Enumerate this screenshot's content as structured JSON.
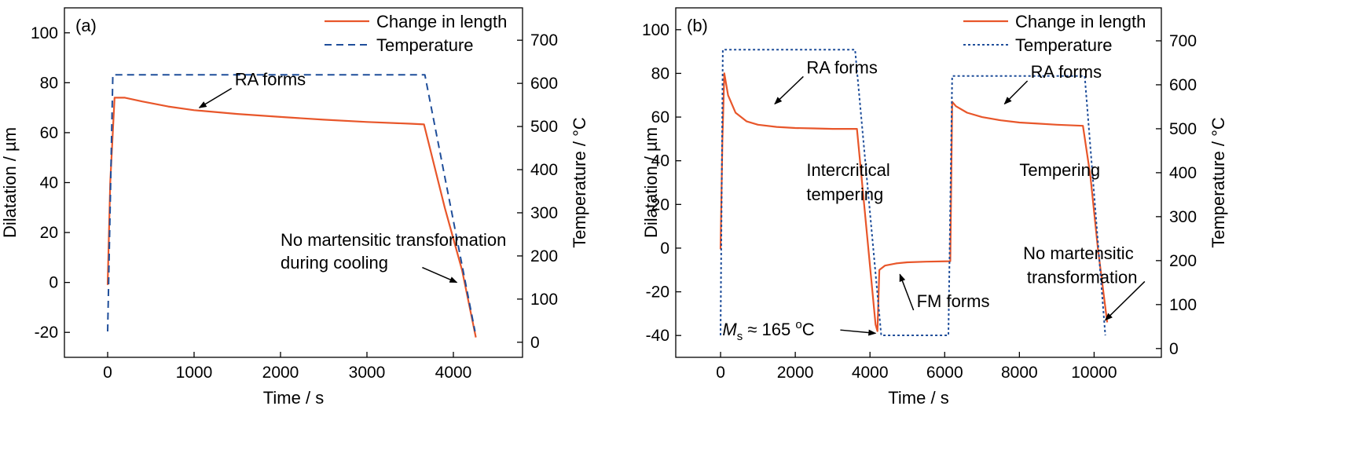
{
  "chart_data": [
    {
      "type": "line",
      "panel_label": "(a)",
      "xlabel": "Time / s",
      "ylabel": "Dilatation / µm",
      "y2label": "Temperature / °C",
      "xlim": [
        -500,
        4800
      ],
      "ylim": [
        -30,
        110
      ],
      "y2lim": [
        -35,
        775
      ],
      "xticks": [
        0,
        1000,
        2000,
        3000,
        4000
      ],
      "yticks": [
        -20,
        0,
        20,
        40,
        60,
        80,
        100
      ],
      "y2ticks": [
        0,
        100,
        200,
        300,
        400,
        500,
        600,
        700
      ],
      "grid": false,
      "legend_position": "top-right",
      "series": [
        {
          "name": "Change in length",
          "axis": "left",
          "style": "solid",
          "color": "#e8562a",
          "x": [
            0,
            30,
            80,
            200,
            400,
            700,
            1000,
            1500,
            2000,
            2500,
            3000,
            3500,
            3660,
            3900,
            4100,
            4260
          ],
          "y": [
            -1,
            40,
            74,
            74,
            72.5,
            70.5,
            69,
            67.5,
            66.3,
            65.2,
            64.3,
            63.6,
            63.3,
            30,
            5,
            -22
          ]
        },
        {
          "name": "Temperature",
          "axis": "right",
          "style": "dashed",
          "color": "#1f4e9a",
          "x": [
            0,
            60,
            3670,
            4250
          ],
          "y": [
            25,
            620,
            620,
            25
          ]
        }
      ],
      "annotations": [
        {
          "text": "RA forms",
          "x": 1470,
          "y": 79,
          "arrow_to": [
            1060,
            70
          ]
        },
        {
          "text": "No martensitic transformation",
          "x": 2000,
          "y": 14.6
        },
        {
          "text": "during cooling",
          "x": 2000,
          "y": 5.6
        },
        {
          "text_anchor": [
            3640,
            6
          ],
          "arrow_to": [
            4040,
            0
          ]
        }
      ]
    },
    {
      "type": "line",
      "panel_label": "(b)",
      "xlabel": "Time / s",
      "ylabel": "Dilatation / µm",
      "y2label": "Temperature / °C",
      "xlim": [
        -1200,
        11800
      ],
      "ylim": [
        -50,
        110
      ],
      "y2lim": [
        -20,
        775
      ],
      "xticks": [
        0,
        2000,
        4000,
        6000,
        8000,
        10000
      ],
      "yticks": [
        -40,
        -20,
        0,
        20,
        40,
        60,
        80,
        100
      ],
      "y2ticks": [
        0,
        100,
        200,
        300,
        400,
        500,
        600,
        700
      ],
      "grid": false,
      "legend_position": "top-right",
      "series": [
        {
          "name": "Change in length",
          "axis": "left",
          "style": "solid",
          "color": "#e8562a",
          "x": [
            0,
            50,
            100,
            200,
            400,
            700,
            1000,
            1500,
            2000,
            2500,
            3000,
            3650,
            3900,
            4150,
            4200,
            4250,
            4400,
            4700,
            5000,
            5500,
            6150,
            6200,
            6300,
            6600,
            7000,
            7500,
            8000,
            8500,
            9000,
            9700,
            9900,
            10100,
            10350
          ],
          "y": [
            -0.5,
            50,
            80,
            70,
            62,
            58,
            56.5,
            55.5,
            55,
            54.8,
            54.6,
            54.6,
            10,
            -35,
            -38,
            -10,
            -8,
            -7,
            -6.5,
            -6.2,
            -6,
            67,
            65,
            62,
            60,
            58.5,
            57.5,
            57,
            56.5,
            56,
            33,
            0,
            -34
          ]
        },
        {
          "name": "Temperature",
          "axis": "right",
          "style": "dotted",
          "color": "#1f4e9a",
          "x": [
            0,
            60,
            3600,
            4300,
            6100,
            6200,
            9750,
            10300
          ],
          "y": [
            30,
            680,
            680,
            30,
            30,
            620,
            620,
            30
          ]
        }
      ],
      "annotations": [
        {
          "text": "RA forms",
          "x": 2300,
          "y": 80,
          "arrow_to": [
            1450,
            66
          ]
        },
        {
          "text": "Intercritical",
          "x": 2300,
          "y": 33
        },
        {
          "text": "tempering",
          "x": 2300,
          "y": 22
        },
        {
          "text": "FM forms",
          "x": 5250,
          "y": -27,
          "arrow_to": [
            4800,
            -12
          ]
        },
        {
          "text": "M",
          "sub": "s",
          "rest_prefix": " ≈ 165 ",
          "sup": "o",
          "rest_suffix": "C",
          "x": 50,
          "y": -40,
          "arrow_to": [
            4150,
            -39
          ]
        },
        {
          "text": "RA forms",
          "x": 8300,
          "y": 78,
          "arrow_to": [
            7600,
            66
          ]
        },
        {
          "text": "Tempering",
          "x": 8000,
          "y": 33
        },
        {
          "text": "No martensitic",
          "x": 8100,
          "y": -5
        },
        {
          "text": "transformation",
          "x": 8200,
          "y": -16,
          "arrow_to": [
            10300,
            -33
          ]
        }
      ]
    }
  ]
}
